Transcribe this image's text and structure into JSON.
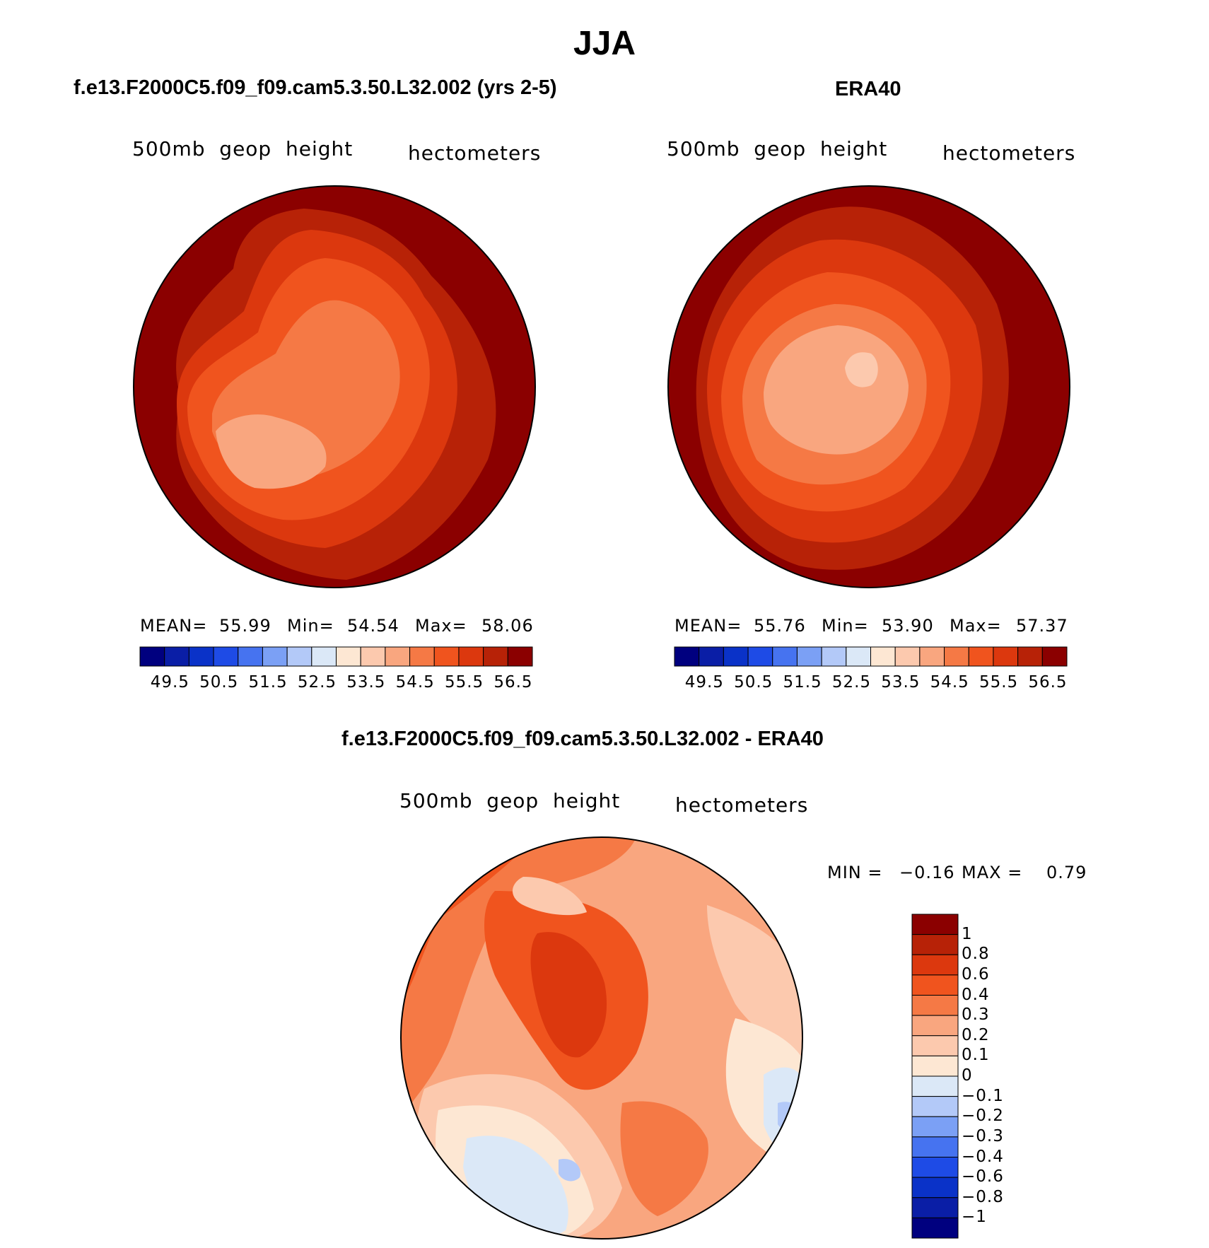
{
  "page": {
    "title": "JJA"
  },
  "panels": [
    {
      "case_title": "f.e13.F2000C5.f09_f09.cam5.3.50.L32.002 (yrs 2-5)",
      "field": "500mb  geop  height",
      "units": "hectometers",
      "stats": {
        "mean_label": "MEAN=",
        "mean": "55.99",
        "min_label": "Min=",
        "min": "54.54",
        "max_label": "Max=",
        "max": "58.06"
      },
      "colorbar_labels": [
        "49.5",
        "50.5",
        "51.5",
        "52.5",
        "53.5",
        "54.5",
        "55.5",
        "56.5"
      ]
    },
    {
      "case_title": "ERA40",
      "field": "500mb  geop  height",
      "units": "hectometers",
      "stats": {
        "mean_label": "MEAN=",
        "mean": "55.76",
        "min_label": "Min=",
        "min": "53.90",
        "max_label": "Max=",
        "max": "57.37"
      },
      "colorbar_labels": [
        "49.5",
        "50.5",
        "51.5",
        "52.5",
        "53.5",
        "54.5",
        "55.5",
        "56.5"
      ]
    }
  ],
  "difference": {
    "case_title": "f.e13.F2000C5.f09_f09.cam5.3.50.L32.002 - ERA40",
    "field": "500mb  geop  height",
    "units": "hectometers",
    "stats": {
      "min_label": "MIN =",
      "min": "−0.16",
      "max_label": "MAX =",
      "max": "0.79"
    },
    "colorbar_labels": [
      "1",
      "0.8",
      "0.6",
      "0.4",
      "0.3",
      "0.2",
      "0.1",
      "0",
      "−0.1",
      "−0.2",
      "−0.3",
      "−0.4",
      "−0.6",
      "−0.8",
      "−1"
    ]
  },
  "colors": {
    "abs_scale": [
      "#00007f",
      "#0a1ea6",
      "#0a32c8",
      "#1e4be6",
      "#4673f0",
      "#7ba0f5",
      "#b3c9f8",
      "#dbe8f7",
      "#fde7d3",
      "#fcc9ae",
      "#f9a67f",
      "#f57945",
      "#f0541e",
      "#dc380e",
      "#b72207",
      "#8b0000"
    ],
    "diff_scale": [
      "#8b0000",
      "#b72207",
      "#dc380e",
      "#f0541e",
      "#f57945",
      "#f9a67f",
      "#fcc9ae",
      "#fde7d3",
      "#dbe8f7",
      "#b3c9f8",
      "#7ba0f5",
      "#4673f0",
      "#1e4be6",
      "#0a32c8",
      "#0a1ea6",
      "#00007f"
    ]
  }
}
